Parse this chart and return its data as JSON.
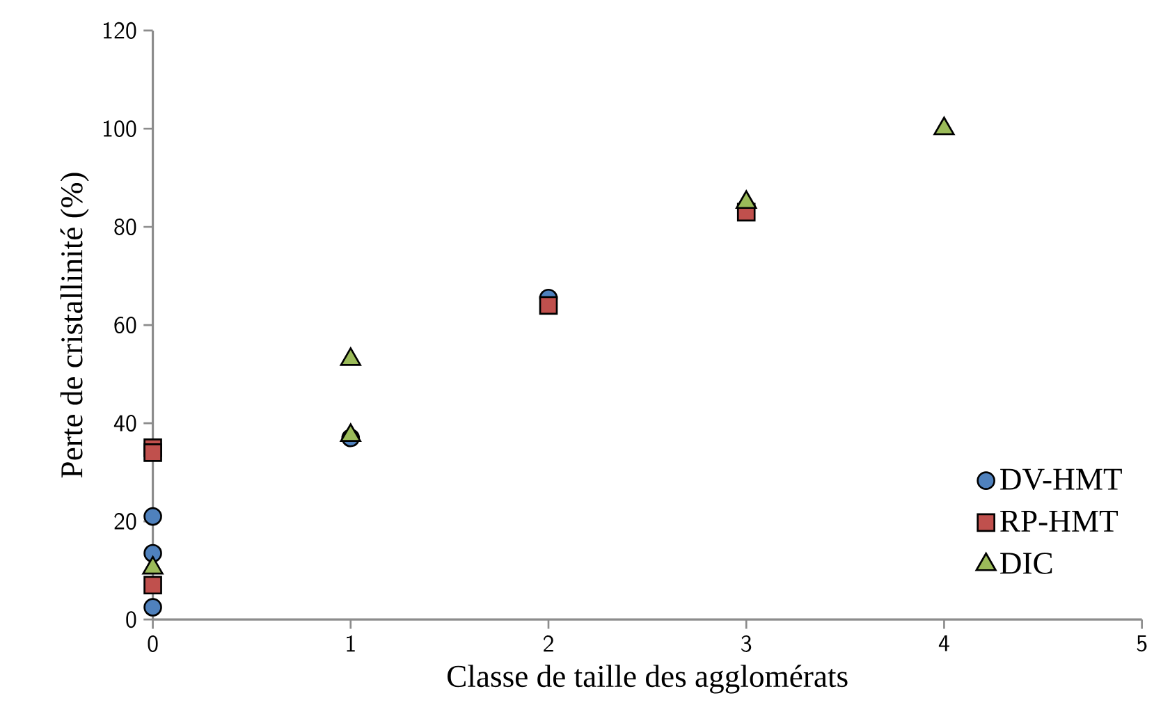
{
  "chart_data": {
    "type": "scatter",
    "xlabel": "Classe de taille des agglomérats",
    "ylabel": "Perte de cristallinité (%)",
    "xlim": [
      0,
      5
    ],
    "xticks": [
      0,
      1,
      2,
      3,
      4,
      5
    ],
    "ylim": [
      0,
      120
    ],
    "yticks": [
      0,
      20,
      40,
      60,
      80,
      100,
      120
    ],
    "grid": false,
    "legend": "bottom right",
    "series": [
      {
        "name": "DV-HMT",
        "color": "#4f81bd",
        "marker": "circle",
        "x": [
          0,
          0,
          0,
          1,
          2
        ],
        "values": [
          21,
          13.5,
          2.5,
          37,
          65.5
        ]
      },
      {
        "name": "RP-HMT",
        "color": "#c0504d",
        "marker": "square",
        "x": [
          0,
          0,
          0,
          2,
          3
        ],
        "values": [
          35,
          34,
          7,
          64,
          83
        ]
      },
      {
        "name": "DIC",
        "color": "#9bbb59",
        "marker": "triangle",
        "x": [
          0,
          1,
          1,
          3,
          4
        ],
        "values": [
          10.5,
          53,
          37.5,
          85,
          100
        ]
      }
    ]
  }
}
